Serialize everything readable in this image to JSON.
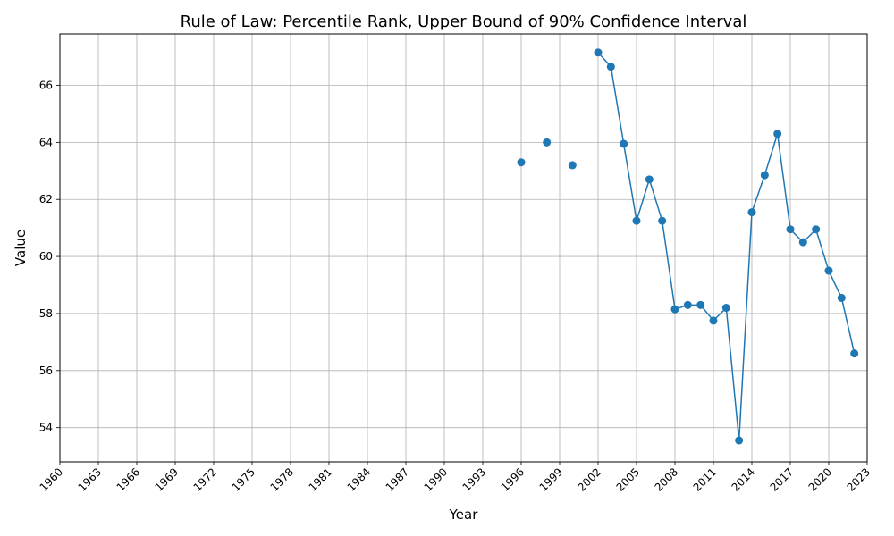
{
  "chart_data": {
    "type": "line",
    "title": "Rule of Law: Percentile Rank, Upper Bound of 90% Confidence Interval",
    "xlabel": "Year",
    "ylabel": "Value",
    "xlim": [
      1960,
      2023
    ],
    "ylim": [
      52.8,
      67.8
    ],
    "x_ticks": [
      1960,
      1963,
      1966,
      1969,
      1972,
      1975,
      1978,
      1981,
      1984,
      1987,
      1990,
      1993,
      1996,
      1999,
      2002,
      2005,
      2008,
      2011,
      2014,
      2017,
      2020,
      2023
    ],
    "y_ticks": [
      54,
      56,
      58,
      60,
      62,
      64,
      66
    ],
    "grid": true,
    "color": "#1f77b4",
    "series": [
      {
        "x": [
          1996,
          1998,
          2000,
          2002,
          2003,
          2004,
          2005,
          2006,
          2007,
          2008,
          2009,
          2010,
          2011,
          2012,
          2013,
          2014,
          2015,
          2016,
          2017,
          2018,
          2019,
          2020,
          2021,
          2022
        ],
        "values": [
          63.3,
          64.0,
          63.2,
          67.15,
          66.65,
          63.95,
          61.25,
          62.7,
          61.25,
          58.15,
          58.3,
          58.3,
          57.75,
          58.2,
          53.55,
          61.55,
          62.85,
          64.3,
          60.95,
          60.5,
          60.95,
          59.5,
          58.55,
          56.6
        ]
      }
    ]
  }
}
